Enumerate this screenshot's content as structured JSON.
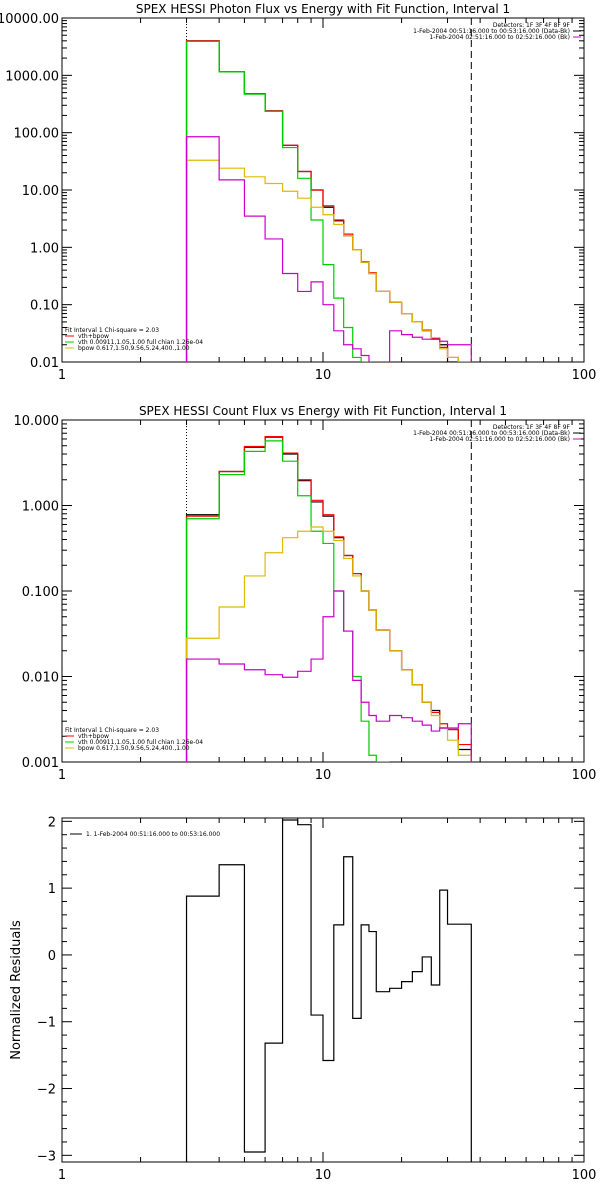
{
  "chart_data": [
    {
      "type": "line",
      "title": "SPEX HESSI Photon Flux vs Energy with Fit Function, Interval 1",
      "xscale": "log",
      "yscale": "log",
      "xlim": [
        1,
        100
      ],
      "ylim": [
        0.01,
        10000
      ],
      "x_tick_labels": [
        "1",
        "10",
        "100"
      ],
      "y_tick_labels": [
        "0.01",
        "0.10",
        "1.00",
        "10.00",
        "100.00",
        "1000.00",
        "10000.00"
      ],
      "vlines": [
        {
          "x": 3.0,
          "style": "dotted"
        },
        {
          "x": 37.0,
          "style": "dashed"
        }
      ],
      "legend_top_right": [
        {
          "text": "Detectors: 1F 3F 4F 8F 9F",
          "color": ""
        },
        {
          "text": "1-Feb-2004 00:51:16.000 to 00:53:16.000 (Data-Bk)",
          "color": "#000000"
        },
        {
          "text": "1-Feb-2004 02:51:16.000 to 02:52:16.000 (Bk)",
          "color": "#cc00cc"
        }
      ],
      "legend_bottom_left": [
        {
          "text": "Fit Interval 1    Chi-square = 2.03",
          "color": ""
        },
        {
          "text": "vth+bpow",
          "color": "#ff0000"
        },
        {
          "text": "vth 0.00911,1.05,1.00  full chian 1.26e-04",
          "color": "#00cc00"
        },
        {
          "text": "bpow 0.617,1.50,9.56,5.24,400.,1.00",
          "color": "#ddbb00"
        }
      ],
      "edges": [
        3.0,
        4.0,
        5.0,
        6.0,
        7.0,
        8.0,
        9.0,
        10.0,
        11.0,
        12.0,
        13.0,
        14.0,
        15.0,
        16.0,
        18.0,
        20.0,
        22.0,
        24.0,
        26.0,
        28.0,
        30.0,
        33.0,
        37.0
      ],
      "series": [
        {
          "color": "#000000",
          "values": [
            4000,
            1150,
            480,
            240,
            60,
            21,
            10,
            5.0,
            2.9,
            1.6,
            0.9,
            0.55,
            0.35,
            0.17,
            0.11,
            0.07,
            0.05,
            0.035,
            0.025,
            0.02,
            0.01,
            0.01
          ]
        },
        {
          "color": "#ff0000",
          "values": [
            4000,
            1150,
            480,
            240,
            60,
            21,
            10,
            5.3,
            3.0,
            1.7,
            0.9,
            0.56,
            0.36,
            0.17,
            0.11,
            0.07,
            0.05,
            0.036,
            0.026,
            0.018,
            0.012,
            0.01
          ]
        },
        {
          "color": "#00cc00",
          "values": [
            3900,
            1150,
            470,
            235,
            55,
            16,
            3.0,
            0.5,
            0.13,
            0.04,
            0.012,
            0.005
          ]
        },
        {
          "color": "#ddbb00",
          "values": [
            33,
            24,
            17,
            13,
            9.5,
            7.2,
            5.0,
            3.7,
            2.5,
            1.6,
            0.9,
            0.55,
            0.35,
            0.17,
            0.11,
            0.07,
            0.05,
            0.035,
            0.025,
            0.017,
            0.012,
            0.008
          ]
        },
        {
          "color": "#cc00cc",
          "values": [
            85,
            15,
            3.5,
            1.4,
            0.35,
            0.17,
            0.25,
            0.1,
            0.035,
            0.02,
            0.017,
            0.013,
            0.009,
            0.006,
            0.035,
            0.03,
            0.027,
            0.025,
            0.025,
            0.023,
            0.02,
            0.02
          ]
        }
      ]
    },
    {
      "type": "line",
      "title": "SPEX HESSI Count Flux vs Energy with Fit Function, Interval 1",
      "xscale": "log",
      "yscale": "log",
      "xlim": [
        1,
        100
      ],
      "ylim": [
        0.001,
        10
      ],
      "x_tick_labels": [
        "1",
        "10",
        "100"
      ],
      "y_tick_labels": [
        "0.001",
        "0.010",
        "0.100",
        "1.000",
        "10.000"
      ],
      "vlines": [
        {
          "x": 3.0,
          "style": "dotted"
        },
        {
          "x": 37.0,
          "style": "dashed"
        }
      ],
      "legend_top_right": [
        {
          "text": "Detectors: 1F 3F 4F 8F 9F",
          "color": ""
        },
        {
          "text": "1-Feb-2004 00:51:16.000 to 00:53:16.000 (Data-Bk)",
          "color": "#000000"
        },
        {
          "text": "1-Feb-2004 02:51:16.000 to 02:52:16.000 (Bk)",
          "color": "#cc00cc"
        }
      ],
      "legend_bottom_left": [
        {
          "text": "Fit Interval 1    Chi-square = 2.03",
          "color": ""
        },
        {
          "text": "vth+bpow",
          "color": "#ff0000"
        },
        {
          "text": "vth 0.00911,1.05,1.00  full chian 1.26e-04",
          "color": "#00cc00"
        },
        {
          "text": "bpow 0.617,1.50,9.56,5.24,400.,1.00",
          "color": "#ddbb00"
        }
      ],
      "edges": [
        3.0,
        4.0,
        5.0,
        6.0,
        7.0,
        8.0,
        9.0,
        10.0,
        11.0,
        12.0,
        13.0,
        14.0,
        15.0,
        16.0,
        18.0,
        20.0,
        22.0,
        24.0,
        26.0,
        28.0,
        30.0,
        33.0,
        37.0
      ],
      "series": [
        {
          "color": "#000000",
          "values": [
            0.78,
            2.5,
            4.8,
            6.3,
            4.0,
            1.95,
            1.1,
            0.75,
            0.42,
            0.26,
            0.16,
            0.1,
            0.06,
            0.035,
            0.02,
            0.012,
            0.008,
            0.005,
            0.004,
            0.0025,
            0.0024,
            0.0014
          ]
        },
        {
          "color": "#ff0000",
          "values": [
            0.75,
            2.5,
            4.9,
            6.4,
            4.1,
            2.0,
            1.15,
            0.78,
            0.43,
            0.26,
            0.16,
            0.1,
            0.06,
            0.035,
            0.02,
            0.012,
            0.008,
            0.005,
            0.0038,
            0.0028,
            0.0024,
            0.0016
          ]
        },
        {
          "color": "#00cc00",
          "values": [
            0.7,
            2.3,
            4.3,
            5.7,
            3.3,
            1.3,
            0.5,
            0.36,
            0.1,
            0.034,
            0.01,
            0.003,
            0.0012,
            0.0005
          ]
        },
        {
          "color": "#ddbb00",
          "values": [
            0.028,
            0.065,
            0.15,
            0.28,
            0.42,
            0.5,
            0.56,
            0.5,
            0.39,
            0.24,
            0.15,
            0.1,
            0.06,
            0.035,
            0.02,
            0.012,
            0.008,
            0.005,
            0.0035,
            0.0025,
            0.0018,
            0.0012
          ]
        },
        {
          "color": "#cc00cc",
          "values": [
            0.016,
            0.014,
            0.012,
            0.0105,
            0.0098,
            0.0115,
            0.016,
            0.05,
            0.1,
            0.034,
            0.009,
            0.005,
            0.0035,
            0.003,
            0.0035,
            0.0033,
            0.003,
            0.0027,
            0.0023,
            0.0025,
            0.0025,
            0.0028
          ]
        }
      ]
    },
    {
      "type": "line",
      "title": "",
      "ylabel": "Normalized Residuals",
      "xscale": "log",
      "yscale": "linear",
      "xlim": [
        1,
        100
      ],
      "ylim": [
        -3.1,
        2.05
      ],
      "x_tick_labels": [
        "1",
        "10",
        "100"
      ],
      "y_tick_labels": [
        "-3",
        "-2",
        "-1",
        "0",
        "1",
        "2"
      ],
      "y_tick_values": [
        -3,
        -2,
        -1,
        0,
        1,
        2
      ],
      "legend": [
        {
          "text": "1.  1-Feb-2004 00:51:16.000 to 00:53:16.000",
          "color": "#000000"
        }
      ],
      "edges": [
        3.0,
        4.0,
        5.0,
        6.0,
        7.0,
        8.0,
        9.0,
        10.0,
        11.0,
        12.0,
        13.0,
        14.0,
        15.0,
        16.0,
        18.0,
        20.0,
        22.0,
        24.0,
        26.0,
        28.0,
        30.0,
        33.0,
        37.0
      ],
      "series": [
        {
          "color": "#000000",
          "values": [
            0.88,
            1.35,
            -2.95,
            -1.32,
            2.02,
            1.95,
            -0.9,
            -1.58,
            0.45,
            1.47,
            -0.95,
            0.45,
            0.35,
            -0.55,
            -0.5,
            -0.4,
            -0.25,
            -0.03,
            -0.45,
            0.97,
            0.46,
            0.46
          ]
        }
      ]
    }
  ]
}
